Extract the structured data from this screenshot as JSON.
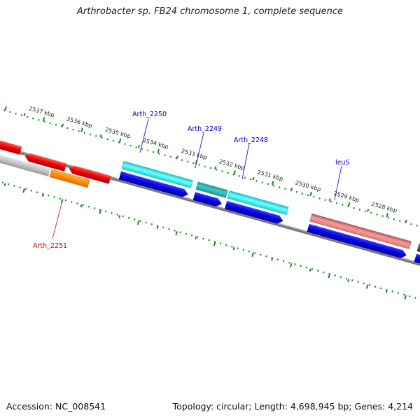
{
  "title": "Arthrobacter sp. FB24 chromosome 1, complete sequence",
  "footer": {
    "accession": "Accession: NC_008541",
    "summary": "Topology: circular; Length: 4,698,945 bp; Genes: 4,214"
  },
  "scale": {
    "ticks": [
      "2537 kbp",
      "2536 kbp",
      "2535 kbp",
      "2534 kbp",
      "2533 kbp",
      "2532 kbp",
      "2531 kbp",
      "2530 kbp",
      "2529 kbp",
      "2528 kbp"
    ]
  },
  "gene_labels": [
    {
      "id": "arth2250",
      "text": "Arth_2250",
      "color": "#0000cc"
    },
    {
      "id": "arth2249",
      "text": "Arth_2249",
      "color": "#0000cc"
    },
    {
      "id": "arth2248",
      "text": "Arth_2248",
      "color": "#0000cc"
    },
    {
      "id": "leuS",
      "text": "leuS",
      "color": "#0000cc"
    },
    {
      "id": "arth2251",
      "text": "Arth_2251",
      "color": "#cc0000"
    }
  ],
  "colors": {
    "backbone": "#777777",
    "tick_green": "#1a8a1a",
    "cds_blue": "#0000ee",
    "cyan": "#00e5e5",
    "teal": "#00aaaa",
    "salmon": "#f08080",
    "red": "#ee0000",
    "orange": "#ff8c00",
    "gray": "#b5b5b5",
    "dark_gray": "#555555"
  }
}
